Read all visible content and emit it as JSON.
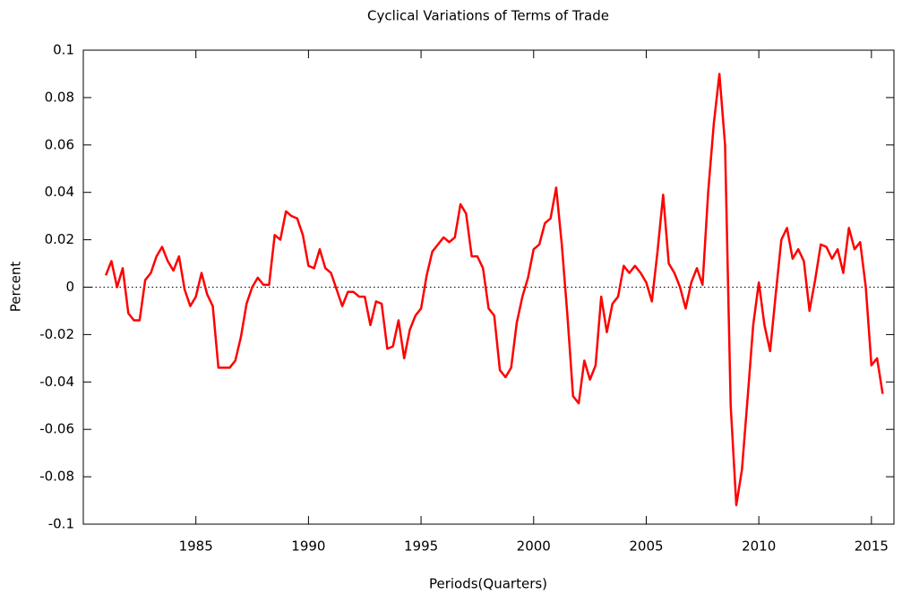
{
  "chart_data": {
    "type": "line",
    "title": "Cyclical Variations of Terms of Trade",
    "x_label": "Periods(Quarters)",
    "y_label": "Percent",
    "x": [
      1981,
      1981.25,
      1981.5,
      1981.75,
      1982,
      1982.25,
      1982.5,
      1982.75,
      1983,
      1983.25,
      1983.5,
      1983.75,
      1984,
      1984.25,
      1984.5,
      1984.75,
      1985,
      1985.25,
      1985.5,
      1985.75,
      1986,
      1986.25,
      1986.5,
      1986.75,
      1987,
      1987.25,
      1987.5,
      1987.75,
      1988,
      1988.25,
      1988.5,
      1988.75,
      1989,
      1989.25,
      1989.5,
      1989.75,
      1990,
      1990.25,
      1990.5,
      1990.75,
      1991,
      1991.25,
      1991.5,
      1991.75,
      1992,
      1992.25,
      1992.5,
      1992.75,
      1993,
      1993.25,
      1993.5,
      1993.75,
      1994,
      1994.25,
      1994.5,
      1994.75,
      1995,
      1995.25,
      1995.5,
      1995.75,
      1996,
      1996.25,
      1996.5,
      1996.75,
      1997,
      1997.25,
      1997.5,
      1997.75,
      1998,
      1998.25,
      1998.5,
      1998.75,
      1999,
      1999.25,
      1999.5,
      1999.75,
      2000,
      2000.25,
      2000.5,
      2000.75,
      2001,
      2001.25,
      2001.5,
      2001.75,
      2002,
      2002.25,
      2002.5,
      2002.75,
      2003,
      2003.25,
      2003.5,
      2003.75,
      2004,
      2004.25,
      2004.5,
      2004.75,
      2005,
      2005.25,
      2005.5,
      2005.75,
      2006,
      2006.25,
      2006.5,
      2006.75,
      2007,
      2007.25,
      2007.5,
      2007.75,
      2008,
      2008.25,
      2008.5,
      2008.75,
      2009,
      2009.25,
      2009.5,
      2009.75,
      2010,
      2010.25,
      2010.5,
      2010.75,
      2011,
      2011.25,
      2011.5,
      2011.75,
      2012,
      2012.25,
      2012.5,
      2012.75,
      2013,
      2013.25,
      2013.5,
      2013.75,
      2014,
      2014.25,
      2014.5,
      2014.75,
      2015,
      2015.25,
      2015.5
    ],
    "series": [
      {
        "name": "Terms of Trade",
        "color": "#ff0000",
        "values": [
          0.005,
          0.011,
          0.0,
          0.008,
          -0.011,
          -0.014,
          -0.014,
          0.003,
          0.006,
          0.013,
          0.017,
          0.011,
          0.007,
          0.013,
          -0.001,
          -0.008,
          -0.004,
          0.006,
          -0.003,
          -0.008,
          -0.034,
          -0.034,
          -0.034,
          -0.031,
          -0.021,
          -0.007,
          0.0,
          0.004,
          0.001,
          0.001,
          0.022,
          0.02,
          0.032,
          0.03,
          0.029,
          0.022,
          0.009,
          0.008,
          0.016,
          0.008,
          0.006,
          -0.001,
          -0.008,
          -0.002,
          -0.002,
          -0.004,
          -0.004,
          -0.016,
          -0.006,
          -0.007,
          -0.026,
          -0.025,
          -0.014,
          -0.03,
          -0.018,
          -0.012,
          -0.009,
          0.005,
          0.015,
          0.018,
          0.021,
          0.019,
          0.021,
          0.035,
          0.031,
          0.013,
          0.013,
          0.008,
          -0.009,
          -0.012,
          -0.035,
          -0.038,
          -0.034,
          -0.015,
          -0.004,
          0.004,
          0.016,
          0.018,
          0.027,
          0.029,
          0.042,
          0.018,
          -0.012,
          -0.046,
          -0.049,
          -0.031,
          -0.039,
          -0.033,
          -0.004,
          -0.019,
          -0.007,
          -0.004,
          0.009,
          0.006,
          0.009,
          0.006,
          0.002,
          -0.006,
          0.015,
          0.039,
          0.01,
          0.006,
          0.0,
          -0.009,
          0.002,
          0.008,
          0.001,
          0.04,
          0.069,
          0.09,
          0.06,
          -0.05,
          -0.092,
          -0.077,
          -0.047,
          -0.016,
          0.002,
          -0.016,
          -0.027,
          -0.003,
          0.02,
          0.025,
          0.012,
          0.016,
          0.011,
          -0.01,
          0.003,
          0.018,
          0.017,
          0.012,
          0.016,
          0.006,
          0.025,
          0.016,
          0.019,
          0.0,
          -0.033,
          -0.03,
          -0.045
        ]
      }
    ],
    "xlim": [
      1980,
      2016
    ],
    "xticks": [
      1985,
      1990,
      1995,
      2000,
      2005,
      2010,
      2015
    ],
    "ylim": [
      -0.1,
      0.1
    ],
    "yticks": [
      -0.1,
      -0.08,
      -0.06,
      -0.04,
      -0.02,
      0,
      0.02,
      0.04,
      0.06,
      0.08,
      0.1
    ],
    "zero_line": true,
    "grid": false
  }
}
